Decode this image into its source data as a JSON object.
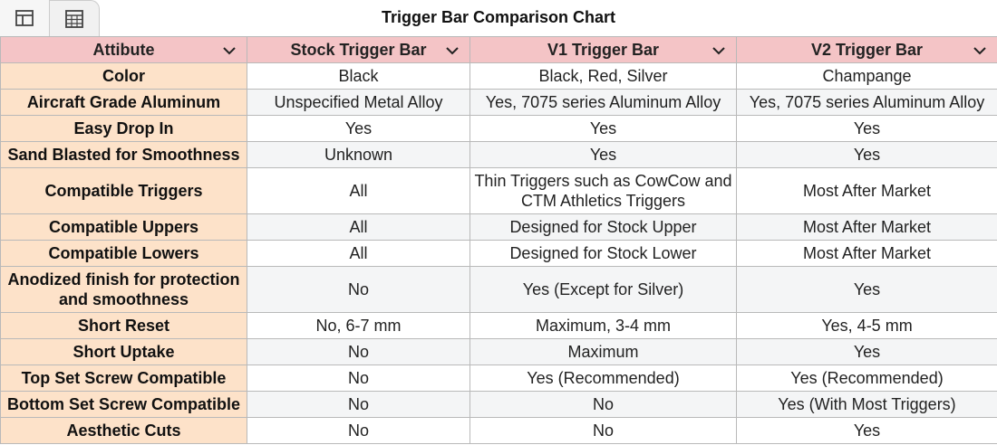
{
  "header": {
    "title": "Trigger Bar Comparison Chart"
  },
  "table": {
    "columns": [
      "Attibute",
      "Stock Trigger Bar",
      "V1 Trigger Bar",
      "V2 Trigger Bar"
    ],
    "rows": [
      [
        "Color",
        "Black",
        "Black, Red, Silver",
        "Champange"
      ],
      [
        "Aircraft Grade Aluminum",
        "Unspecified Metal Alloy",
        "Yes, 7075 series Aluminum Alloy",
        "Yes, 7075 series Aluminum Alloy"
      ],
      [
        "Easy Drop In",
        "Yes",
        "Yes",
        "Yes"
      ],
      [
        "Sand Blasted for Smoothness",
        "Unknown",
        "Yes",
        "Yes"
      ],
      [
        "Compatible Triggers",
        "All",
        "Thin Triggers such as CowCow and CTM Athletics Triggers",
        "Most After Market"
      ],
      [
        "Compatible Uppers",
        "All",
        "Designed for Stock Upper",
        "Most After Market"
      ],
      [
        "Compatible Lowers",
        "All",
        "Designed for Stock Lower",
        "Most After Market"
      ],
      [
        "Anodized finish for protection and smoothness",
        "No",
        "Yes (Except for Silver)",
        "Yes"
      ],
      [
        "Short Reset",
        "No, 6-7 mm",
        "Maximum, 3-4 mm",
        "Yes, 4-5 mm"
      ],
      [
        "Short Uptake",
        "No",
        "Maximum",
        "Yes"
      ],
      [
        "Top Set Screw Compatible",
        "No",
        "Yes (Recommended)",
        "Yes (Recommended)"
      ],
      [
        "Bottom Set Screw Compatible",
        "No",
        "No",
        "Yes (With Most Triggers)"
      ],
      [
        "Aesthetic Cuts",
        "No",
        "No",
        "Yes"
      ]
    ]
  }
}
